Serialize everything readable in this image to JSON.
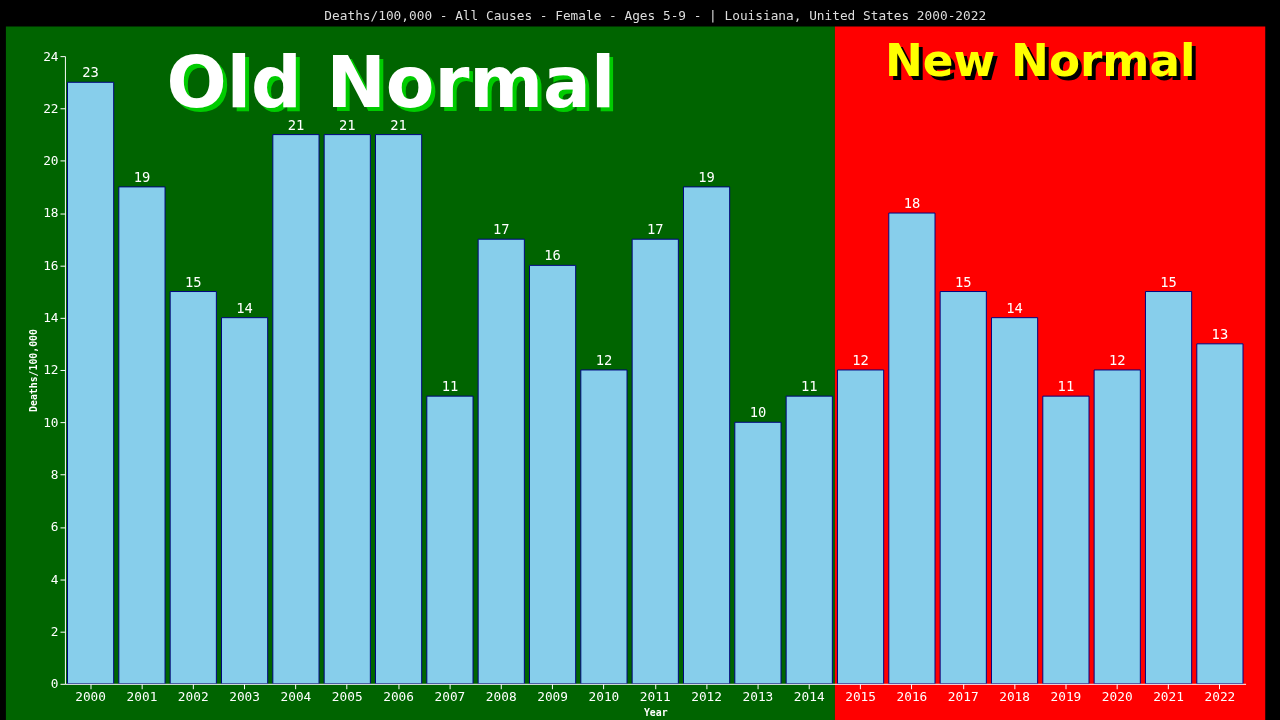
{
  "chart_data": {
    "type": "bar",
    "title": "Deaths/100,000 - All Causes - Female - Ages 5-9 -  | Louisiana, United States 2000-2022",
    "xlabel": "Year",
    "ylabel": "Deaths/100,000",
    "categories": [
      "2000",
      "2001",
      "2002",
      "2003",
      "2004",
      "2005",
      "2006",
      "2007",
      "2008",
      "2009",
      "2010",
      "2011",
      "2012",
      "2013",
      "2014",
      "2015",
      "2016",
      "2017",
      "2018",
      "2019",
      "2020",
      "2021",
      "2022"
    ],
    "values": [
      23,
      19,
      15,
      14,
      21,
      21,
      21,
      11,
      17,
      16,
      12,
      17,
      19,
      10,
      11,
      12,
      18,
      15,
      14,
      11,
      12,
      15,
      13
    ],
    "color": "#87ceeb",
    "ylim": [
      0,
      24
    ],
    "yticks": [
      0,
      2,
      4,
      6,
      8,
      10,
      12,
      14,
      16,
      18,
      20,
      22,
      24
    ],
    "grid": false,
    "legend": false,
    "data_labels": true,
    "bands": [
      {
        "axis": "x",
        "from": "2000",
        "to": "2014",
        "label": "Old Normal",
        "color": "#006400"
      },
      {
        "axis": "x",
        "from": "2015",
        "to": "2022",
        "label": "New Normal",
        "color": "#ff0000"
      }
    ]
  }
}
